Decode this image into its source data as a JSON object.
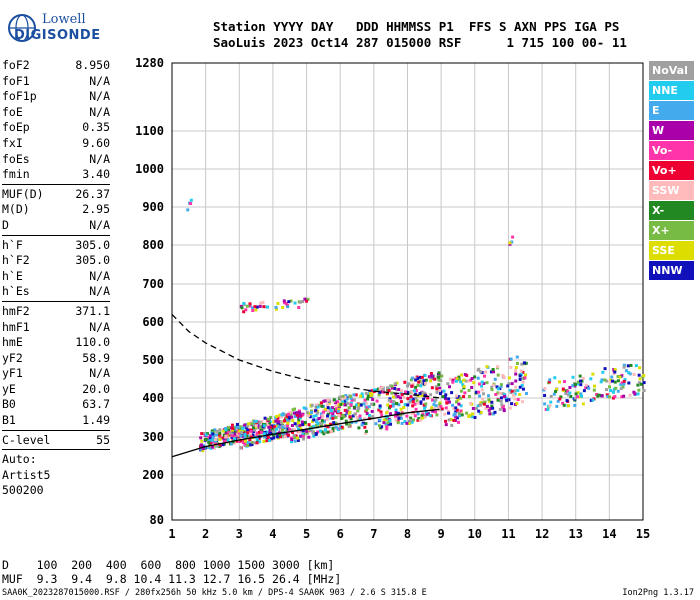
{
  "logo": {
    "line1": "Lowell",
    "line2": "DIGISONDE"
  },
  "header": {
    "line1": "Station YYYY DAY   DDD HHMMSS P1  FFS S AXN PPS IGA PS",
    "line2": "SaoLuis 2023 Oct14 287 015000 RSF      1 715 100 00- 11"
  },
  "params": [
    {
      "name": "foF2",
      "value": "8.950"
    },
    {
      "name": "foF1",
      "value": "N/A"
    },
    {
      "name": "foF1p",
      "value": "N/A"
    },
    {
      "name": "foE",
      "value": "N/A"
    },
    {
      "name": "foEp",
      "value": "0.35"
    },
    {
      "name": "fxI",
      "value": "9.60"
    },
    {
      "name": "foEs",
      "value": "N/A"
    },
    {
      "name": "fmin",
      "value": "3.40"
    },
    {
      "sep": true
    },
    {
      "name": "MUF(D)",
      "value": "26.37"
    },
    {
      "name": "M(D)",
      "value": "2.95"
    },
    {
      "name": "D",
      "value": "N/A"
    },
    {
      "sep": true
    },
    {
      "name": "h`F",
      "value": "305.0"
    },
    {
      "name": "h`F2",
      "value": "305.0"
    },
    {
      "name": "h`E",
      "value": "N/A"
    },
    {
      "name": "h`Es",
      "value": "N/A"
    },
    {
      "sep": true
    },
    {
      "name": "hmF2",
      "value": "371.1"
    },
    {
      "name": "hmF1",
      "value": "N/A"
    },
    {
      "name": "hmE",
      "value": "110.0"
    },
    {
      "name": "yF2",
      "value": "58.9"
    },
    {
      "name": "yF1",
      "value": "N/A"
    },
    {
      "name": "yE",
      "value": "20.0"
    },
    {
      "name": "B0",
      "value": "63.7"
    },
    {
      "name": "B1",
      "value": "1.49"
    },
    {
      "sep": true
    },
    {
      "name": "C-level",
      "value": "55"
    },
    {
      "sep": true
    },
    {
      "text": "Auto:"
    },
    {
      "text": "Artist5"
    },
    {
      "text": "500200"
    }
  ],
  "legend": [
    {
      "label": "NoVal",
      "color": "#a0a0a0"
    },
    {
      "label": "NNE",
      "color": "#22ccee"
    },
    {
      "label": "E",
      "color": "#44aaee"
    },
    {
      "label": "W",
      "color": "#aa00aa"
    },
    {
      "label": "Vo-",
      "color": "#ff33aa"
    },
    {
      "label": "Vo+",
      "color": "#ee0033"
    },
    {
      "label": "SSW",
      "color": "#ffbbbb"
    },
    {
      "label": "X-",
      "color": "#228822"
    },
    {
      "label": "X+",
      "color": "#77bb44"
    },
    {
      "label": "SSE",
      "color": "#dddd00"
    },
    {
      "label": "NNW",
      "color": "#1111bb"
    }
  ],
  "footer": {
    "line1": "D    100  200  400  600  800 1000 1500 3000 [km]",
    "line2": "MUF  9.3  9.4  9.8 10.4 11.3 12.7 16.5 26.4 [MHz]",
    "line3": "SAA0K_2023287015000.RSF / 280fx256h 50 kHz 5.0 km / DPS-4 SAA0K 903 / 2.6 S 315.8 E",
    "version": "Ion2Png 1.3.17"
  },
  "chart_data": {
    "type": "scatter",
    "title": "",
    "xlabel": "",
    "ylabel": "",
    "xlim": [
      1,
      15
    ],
    "ylim": [
      80,
      1280
    ],
    "xticks": [
      1,
      2,
      3,
      4,
      5,
      6,
      7,
      8,
      9,
      10,
      11,
      12,
      13,
      14,
      15
    ],
    "yticks": [
      80,
      200,
      300,
      400,
      500,
      600,
      700,
      800,
      900,
      1000,
      1100,
      1280
    ],
    "grid": true,
    "yscale": "compressed-nonlinear",
    "trace_clusters": [
      {
        "f": [
          1.8,
          3.0
        ],
        "h": [
          265,
          340
        ],
        "count": 180
      },
      {
        "f": [
          3.0,
          4.5
        ],
        "h": [
          275,
          370
        ],
        "count": 260
      },
      {
        "f": [
          4.5,
          6.5
        ],
        "h": [
          290,
          420
        ],
        "count": 280
      },
      {
        "f": [
          6.5,
          9.0
        ],
        "h": [
          300,
          480
        ],
        "count": 300
      },
      {
        "f": [
          9.0,
          11.5
        ],
        "h": [
          320,
          520
        ],
        "count": 220
      },
      {
        "f": [
          12.0,
          15.0
        ],
        "h": [
          370,
          500
        ],
        "count": 150
      },
      {
        "f": [
          3.0,
          5.0
        ],
        "h": [
          630,
          665
        ],
        "count": 40
      },
      {
        "f": [
          1.4,
          1.6
        ],
        "h": [
          890,
          930
        ],
        "count": 4
      },
      {
        "f": [
          11.0,
          11.1
        ],
        "h": [
          800,
          830
        ],
        "count": 4
      }
    ],
    "profile_solid": {
      "f": [
        1.0,
        2.0,
        3.0,
        4.0,
        5.0,
        6.0,
        7.0,
        8.0,
        8.95
      ],
      "h": [
        248,
        275,
        292,
        307,
        320,
        334,
        348,
        362,
        371
      ]
    },
    "profile_dashed": {
      "f": [
        1.0,
        1.5,
        2.0,
        3.0,
        4.0,
        5.0,
        6.0,
        7.0,
        8.0,
        9.0
      ],
      "h": [
        620,
        575,
        545,
        500,
        470,
        447,
        432,
        418,
        410,
        400
      ]
    }
  }
}
